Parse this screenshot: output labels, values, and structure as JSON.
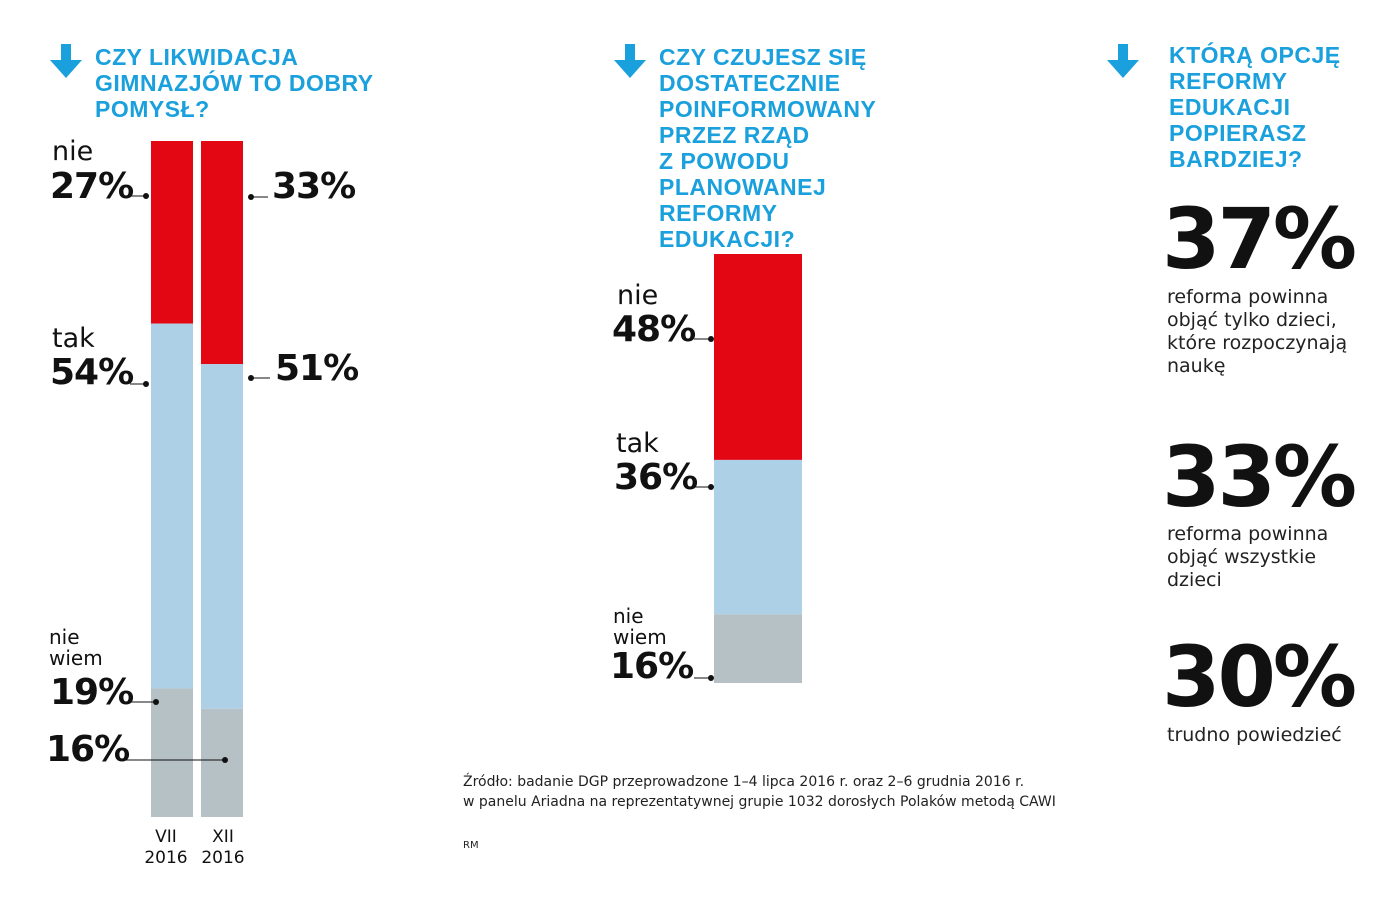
{
  "colors": {
    "nie": "#e30613",
    "tak": "#aed0e6",
    "nie_wiem": "#b5c1c5",
    "title": "#1aa0dc",
    "arrow": "#1aa0dc"
  },
  "icons": {
    "title_arrow": "arrow-down-icon"
  },
  "chart_data": [
    {
      "type": "bar",
      "stacked": true,
      "title": "CZY LIKWIDACJA GIMNAZJÓW TO DOBRY POMYSŁ?",
      "categories": [
        "VII 2016",
        "XII 2016"
      ],
      "category_labels": [
        [
          "VII",
          "2016"
        ],
        [
          "XII",
          "2016"
        ]
      ],
      "series": [
        {
          "name": "nie",
          "values": [
            27,
            33
          ]
        },
        {
          "name": "tak",
          "values": [
            54,
            51
          ]
        },
        {
          "name": "nie wiem",
          "values": [
            19,
            16
          ]
        }
      ]
    },
    {
      "type": "bar",
      "stacked": true,
      "title": "CZY CZUJESZ SIĘ DOSTATECZNIE POINFORMOWANY PRZEZ RZĄD Z POWODU PLANOWANEJ REFORMY EDUKACJI?",
      "series": [
        {
          "name": "nie",
          "values": [
            48
          ]
        },
        {
          "name": "tak",
          "values": [
            36
          ]
        },
        {
          "name": "nie wiem",
          "values": [
            16
          ]
        }
      ]
    },
    {
      "type": "table",
      "title": "KTÓRĄ OPCJĘ REFORMY EDUKACJI POPIERASZ BARDZIEJ?",
      "rows": [
        {
          "value": "37%",
          "label": "reforma powinna objąć tylko dzieci, które rozpoczynają naukę"
        },
        {
          "value": "33%",
          "label": "reforma powinna objąć wszystkie dzieci"
        },
        {
          "value": "30%",
          "label": "trudno powiedzieć"
        }
      ]
    }
  ],
  "q1": {
    "title": "CZY LIKWIDACJA\nGIMNAZJÓW TO DOBRY\nPOMYSŁ?",
    "left": {
      "nie_label": "nie",
      "nie_value": "27%",
      "tak_label": "tak",
      "tak_value": "54%",
      "nw_label": "nie\nwiem",
      "nw_value": "19%"
    },
    "right": {
      "nie_value": "33%",
      "tak_value": "51%",
      "nw_value": "16%"
    },
    "axis": [
      "VII\n2016",
      "XII\n2016"
    ]
  },
  "q2": {
    "title": "CZY CZUJESZ SIĘ\nDOSTATECZNIE\nPOINFORMOWANY\nPRZEZ RZĄD\nZ POWODU\nPLANOWANEJ\nREFORMY\nEDUKACJI?",
    "nie_label": "nie",
    "nie_value": "48%",
    "tak_label": "tak",
    "tak_value": "36%",
    "nw_label": "nie\nwiem",
    "nw_value": "16%"
  },
  "q3": {
    "title": "KTÓRĄ OPCJĘ\nREFORMY\nEDUKACJI\nPOPIERASZ\nBARDZIEJ?",
    "items": [
      {
        "value": "37%",
        "text": "reforma powinna\nobjąć tylko dzieci,\nktóre rozpoczynają\nnaukę"
      },
      {
        "value": "33%",
        "text": "reforma powinna\nobjąć wszystkie\ndzieci"
      },
      {
        "value": "30%",
        "text": "trudno powiedzieć"
      }
    ]
  },
  "source": "Źródło: badanie DGP przeprowadzone  1–4 lipca 2016 r. oraz 2–6 grudnia 2016 r.\nw panelu Ariadna na reprezentatywnej grupie 1032 dorosłych Polaków metodą CAWI",
  "credit": "RM"
}
